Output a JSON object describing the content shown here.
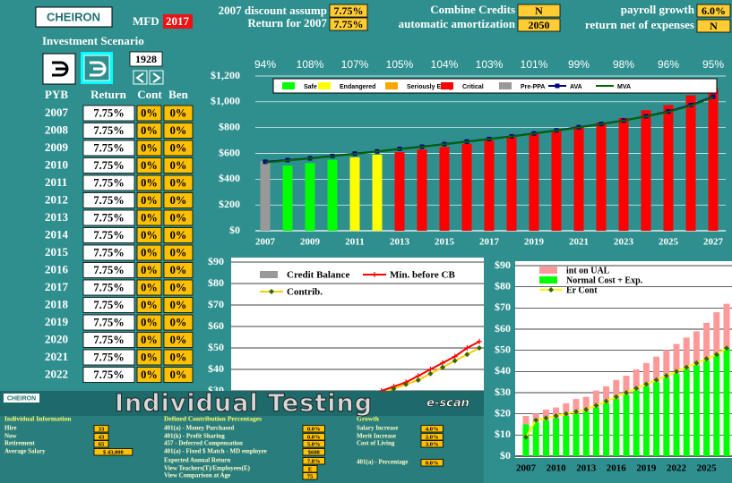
{
  "header": {
    "logo": "CHEIRON",
    "mfd_label": "MFD",
    "mfd_year": "2017",
    "discount_label": "2007 discount assump",
    "discount_value": "7.75%",
    "return_label": "Return for 2007",
    "return_value": "7.75%",
    "combine_label": "Combine Credits",
    "combine_value": "N",
    "amort_label": "automatic amortization",
    "amort_value": "2050",
    "payroll_label": "payroll growth",
    "payroll_value": "6.0%",
    "net_label": "return net of expenses",
    "net_value": "N"
  },
  "scenario": {
    "title": "Investment Scenario",
    "year": "1928"
  },
  "table": {
    "columns": [
      "PYB",
      "Return",
      "Cont",
      "Ben"
    ],
    "rows": [
      [
        "2007",
        "7.75%",
        "0%",
        "0%"
      ],
      [
        "2008",
        "7.75%",
        "0%",
        "0%"
      ],
      [
        "2009",
        "7.75%",
        "0%",
        "0%"
      ],
      [
        "2010",
        "7.75%",
        "0%",
        "0%"
      ],
      [
        "2011",
        "7.75%",
        "0%",
        "0%"
      ],
      [
        "2012",
        "7.75%",
        "0%",
        "0%"
      ],
      [
        "2013",
        "7.75%",
        "0%",
        "0%"
      ],
      [
        "2014",
        "7.75%",
        "0%",
        "0%"
      ],
      [
        "2015",
        "7.75%",
        "0%",
        "0%"
      ],
      [
        "2016",
        "7.75%",
        "0%",
        "0%"
      ],
      [
        "2017",
        "7.75%",
        "0%",
        "0%"
      ],
      [
        "2018",
        "7.75%",
        "0%",
        "0%"
      ],
      [
        "2019",
        "7.75%",
        "0%",
        "0%"
      ],
      [
        "2020",
        "7.75%",
        "0%",
        "0%"
      ],
      [
        "2021",
        "7.75%",
        "0%",
        "0%"
      ],
      [
        "2022",
        "7.75%",
        "0%",
        "0%"
      ]
    ]
  },
  "panel": {
    "logo": "CHEIRON",
    "title": "Individual Testing",
    "brand": "e-scan",
    "sections": [
      {
        "title": "Individual Information",
        "rows": [
          [
            "Hire",
            "33"
          ],
          [
            "Now",
            "43"
          ],
          [
            "Retirement",
            "65"
          ],
          [
            "Average Salary",
            "$ 43,000"
          ]
        ]
      },
      {
        "title": "Defined Contribution Percentages",
        "rows": [
          [
            "401(a) - Money Purchased",
            "0.0%"
          ],
          [
            "401(k) - Profit Sharing",
            "0.0%"
          ],
          [
            "457 - Deferred Compensation",
            "5.0%"
          ],
          [
            "401(a) - Fixed $ Match - MD employee",
            "$600"
          ],
          [
            "Expected Annual Return",
            "7.8%"
          ],
          [
            "View Teachers(T)/Employees(E)",
            "E"
          ],
          [
            "View Comparison at Age",
            "75"
          ]
        ]
      },
      {
        "title": "Growth",
        "rows": [
          [
            "Salary Increase",
            "4.0%"
          ],
          [
            "Merit Increase",
            "2.0%"
          ],
          [
            "Cost of Living",
            "3.0%"
          ],
          [
            "401(a) - Percentage",
            "0.0%"
          ]
        ]
      }
    ]
  },
  "chart_data": [
    {
      "type": "bar",
      "categories": [
        "2007",
        null,
        "2009",
        null,
        "2011",
        null,
        "2013",
        null,
        "2015",
        null,
        "2017",
        null,
        "2019",
        null,
        "2021",
        null,
        "2023",
        null,
        "2025",
        null,
        "2027"
      ],
      "series": [
        {
          "name": "Safe",
          "color": "#00ff00",
          "values": [
            null,
            505,
            525,
            550,
            null,
            null,
            null,
            null,
            null,
            null,
            null,
            null,
            null,
            null,
            null,
            null,
            null,
            null,
            null,
            null,
            null
          ]
        },
        {
          "name": "Endangered",
          "color": "#ffff00",
          "values": [
            null,
            null,
            null,
            null,
            570,
            590,
            null,
            null,
            null,
            null,
            null,
            null,
            null,
            null,
            null,
            null,
            null,
            null,
            null,
            null,
            null
          ]
        },
        {
          "name": "Seriously Endg",
          "color": "#ffa500",
          "values": [
            null,
            null,
            null,
            null,
            null,
            null,
            null,
            null,
            null,
            null,
            null,
            null,
            null,
            null,
            null,
            null,
            null,
            null,
            null,
            null,
            null
          ]
        },
        {
          "name": "Critical",
          "color": "#ff0000",
          "values": [
            null,
            null,
            null,
            null,
            null,
            null,
            610,
            630,
            650,
            675,
            700,
            725,
            750,
            780,
            810,
            840,
            875,
            935,
            975,
            1050,
            1110
          ]
        },
        {
          "name": "Pre-PPA",
          "color": "#999999",
          "values": [
            540,
            null,
            null,
            null,
            null,
            null,
            null,
            null,
            null,
            null,
            null,
            null,
            null,
            null,
            null,
            null,
            null,
            null,
            null,
            null,
            null
          ]
        },
        {
          "name": "AVA",
          "type": "line",
          "color": "#000080",
          "marker": "square",
          "values": [
            535,
            548,
            562,
            580,
            598,
            615,
            635,
            652,
            672,
            692,
            712,
            733,
            755,
            778,
            803,
            828,
            855,
            888,
            925,
            975,
            1040
          ]
        },
        {
          "name": "MVA",
          "type": "line",
          "color": "#006600",
          "values": [
            530,
            545,
            560,
            578,
            596,
            614,
            633,
            650,
            670,
            690,
            710,
            731,
            753,
            776,
            801,
            826,
            853,
            886,
            922,
            970,
            1035
          ]
        }
      ],
      "funded_ratio": {
        "values": [
          94,
          108,
          107,
          105,
          104,
          103,
          101,
          99,
          98,
          96,
          95
        ],
        "value_labels": [
          "94%",
          "108%",
          "107%",
          "105%",
          "104%",
          "103%",
          "101%",
          "99%",
          "98%",
          "96%",
          "95%"
        ]
      },
      "ylim": [
        0,
        1200
      ],
      "yticks": [
        {
          "value": 0,
          "label": "$0"
        },
        {
          "value": 200,
          "label": "$200"
        },
        {
          "value": 400,
          "label": "$400"
        },
        {
          "value": 600,
          "label": "$600"
        },
        {
          "value": 800,
          "label": "$800"
        },
        {
          "value": 1000,
          "label": "$1,000"
        },
        {
          "value": 1200,
          "label": "$1,200"
        }
      ],
      "grid": true
    },
    {
      "type": "line",
      "series": [
        {
          "name": "Credit Balance",
          "color": "#999999"
        },
        {
          "name": "Min. before CB",
          "type": "line",
          "color": "#ff0000",
          "marker": "plus",
          "values": [
            12,
            13,
            14,
            15,
            16,
            17,
            18,
            20,
            22,
            24,
            26,
            28,
            30,
            32,
            34,
            37,
            40,
            43,
            46,
            50,
            53
          ]
        },
        {
          "name": "Contrib.",
          "type": "line",
          "color": "#ffcc00",
          "marker": "diamond",
          "marker_color": "#336600",
          "values": [
            11,
            12,
            13,
            14,
            15,
            16,
            17,
            19,
            21,
            23,
            25,
            27,
            29,
            31,
            33,
            35,
            38,
            41,
            44,
            47,
            50
          ]
        }
      ],
      "ylim": [
        0,
        90
      ],
      "yticks": [
        {
          "value": 30,
          "label": "$30"
        },
        {
          "value": 40,
          "label": "$40"
        },
        {
          "value": 50,
          "label": "$50"
        },
        {
          "value": 60,
          "label": "$60"
        },
        {
          "value": 70,
          "label": "$70"
        },
        {
          "value": 80,
          "label": "$80"
        },
        {
          "value": 90,
          "label": "$90"
        }
      ],
      "grid": true
    },
    {
      "type": "bar",
      "stacked": true,
      "categories": [
        "2007",
        null,
        null,
        "2010",
        null,
        null,
        "2013",
        null,
        null,
        "2016",
        null,
        null,
        "2019",
        null,
        null,
        "2022",
        null,
        null,
        "2025",
        null,
        null
      ],
      "series": [
        {
          "name": "int on UAL",
          "color": "#ff9999",
          "values": [
            4,
            4,
            5,
            5,
            6,
            7,
            7,
            8,
            8,
            9,
            9,
            10,
            11,
            12,
            13,
            14,
            15,
            16,
            18,
            20,
            21
          ]
        },
        {
          "name": "Normal Cost + Exp.",
          "color": "#00ff00",
          "values": [
            15,
            16,
            17,
            18,
            19,
            20,
            21,
            23,
            25,
            27,
            29,
            31,
            33,
            35,
            37,
            39,
            41,
            43,
            45,
            48,
            51
          ]
        },
        {
          "name": "Er Cont",
          "type": "line",
          "color": "#ffff00",
          "marker": "diamond",
          "marker_color": "#336600",
          "values": [
            9,
            17,
            18,
            19,
            20,
            21,
            22,
            24,
            26,
            28,
            30,
            32,
            34,
            36,
            38,
            40,
            42,
            44,
            46,
            48,
            51
          ]
        }
      ],
      "ylim": [
        0,
        90
      ],
      "yticks": [
        {
          "value": 0,
          "label": "$0"
        },
        {
          "value": 10,
          "label": "$10"
        },
        {
          "value": 20,
          "label": "$20"
        },
        {
          "value": 30,
          "label": "$30"
        },
        {
          "value": 40,
          "label": "$40"
        },
        {
          "value": 50,
          "label": "$50"
        },
        {
          "value": 60,
          "label": "$60"
        },
        {
          "value": 70,
          "label": "$70"
        },
        {
          "value": 80,
          "label": "$80"
        },
        {
          "value": 90,
          "label": "$90"
        }
      ],
      "grid": true
    }
  ]
}
